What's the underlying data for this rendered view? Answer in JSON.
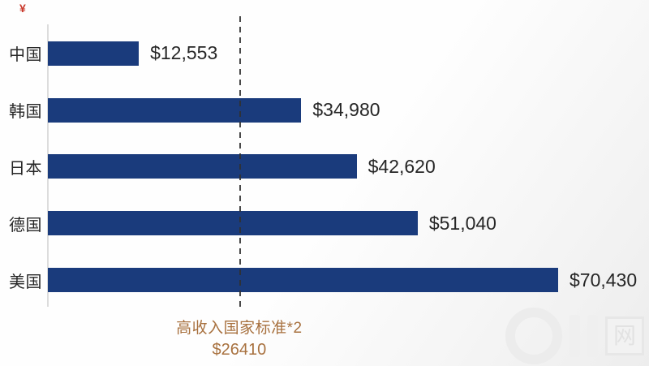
{
  "chart_data": {
    "type": "bar",
    "orientation": "horizontal",
    "categories": [
      "中国",
      "韩国",
      "日本",
      "德国",
      "美国"
    ],
    "values": [
      12553,
      34980,
      42620,
      51040,
      70430
    ],
    "value_labels": [
      "$12,553",
      "$34,980",
      "$42,620",
      "$51,040",
      "$70,430"
    ],
    "bar_color": "#1a3b7c",
    "grid": false,
    "legend": false,
    "axis": {
      "baseline": "left-vertical",
      "xlim": [
        0,
        70430
      ]
    },
    "reference_line": {
      "value": 26410,
      "style": "dashed",
      "label_line1": "高收入国家标准*2",
      "label_line2": "$26410",
      "color": "#a8713f"
    }
  },
  "decorations": {
    "red_mark": "¥",
    "watermark_glyph": "网"
  }
}
